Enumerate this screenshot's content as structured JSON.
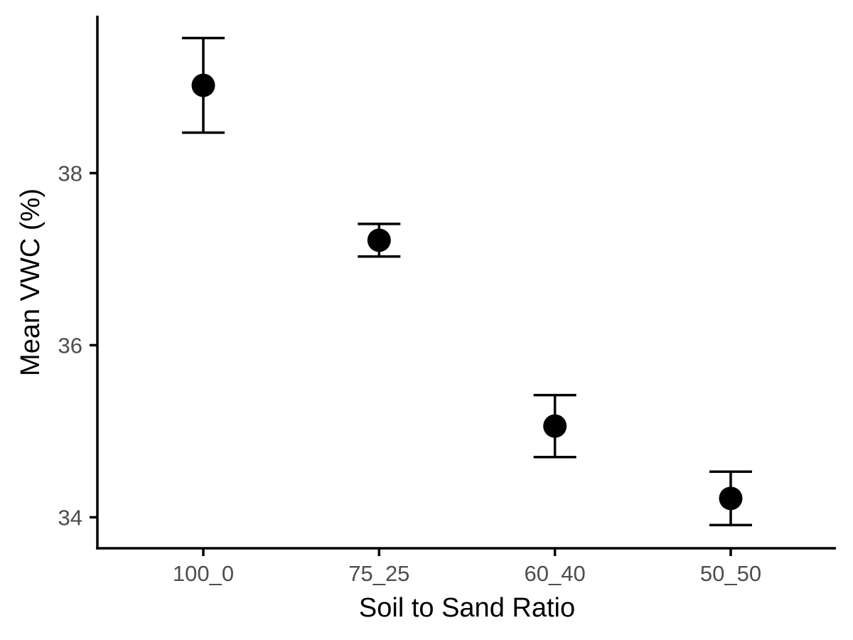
{
  "chart_data": {
    "type": "scatter",
    "xlabel": "Soil to Sand Ratio",
    "ylabel": "Mean VWC (%)",
    "categories": [
      "100_0",
      "75_25",
      "60_40",
      "50_50"
    ],
    "series": [
      {
        "values": [
          39.02,
          37.22,
          35.06,
          34.22
        ],
        "error_lower": [
          38.47,
          37.03,
          34.7,
          33.91
        ],
        "error_upper": [
          39.57,
          37.41,
          35.42,
          34.53
        ]
      }
    ],
    "ylim": [
      33.64,
      39.83
    ],
    "yticks": [
      34,
      36,
      38
    ],
    "ytick_labels": [
      "34",
      "36",
      "38"
    ],
    "grid": false,
    "point_color": "#000000",
    "axis_color": "#000000",
    "tick_label_color": "#4d4d4d"
  }
}
